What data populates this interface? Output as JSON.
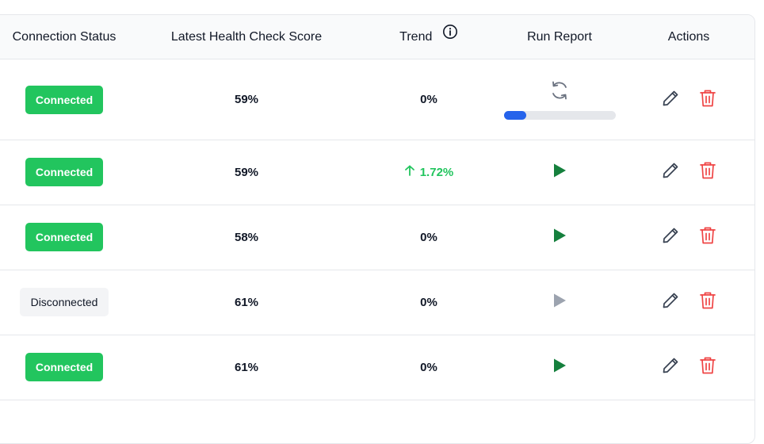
{
  "header": {
    "connection_status": "Connection Status",
    "latest_score": "Latest Health Check Score",
    "trend": "Trend",
    "run_report": "Run Report",
    "actions": "Actions"
  },
  "colors": {
    "connected_badge": "#22c55e",
    "disconnected_badge": "#f3f4f6",
    "play_enabled": "#15803d",
    "play_disabled": "#9ca3af",
    "progress": "#2563eb",
    "edit": "#374151",
    "delete": "#ef4444",
    "trend_up": "#22c55e"
  },
  "rows": [
    {
      "status": "Connected",
      "score": "59%",
      "trend": "0%",
      "trend_dir": "flat",
      "run": "running",
      "progress": 0.2
    },
    {
      "status": "Connected",
      "score": "59%",
      "trend": "1.72%",
      "trend_dir": "up",
      "run": "play"
    },
    {
      "status": "Connected",
      "score": "58%",
      "trend": "0%",
      "trend_dir": "flat",
      "run": "play"
    },
    {
      "status": "Disconnected",
      "score": "61%",
      "trend": "0%",
      "trend_dir": "flat",
      "run": "play-disabled"
    },
    {
      "status": "Connected",
      "score": "61%",
      "trend": "0%",
      "trend_dir": "flat",
      "run": "play"
    }
  ],
  "icons": {
    "trend_info": "info-icon",
    "running": "refresh-icon",
    "play": "play-icon",
    "edit": "pencil-icon",
    "delete": "trash-icon"
  }
}
